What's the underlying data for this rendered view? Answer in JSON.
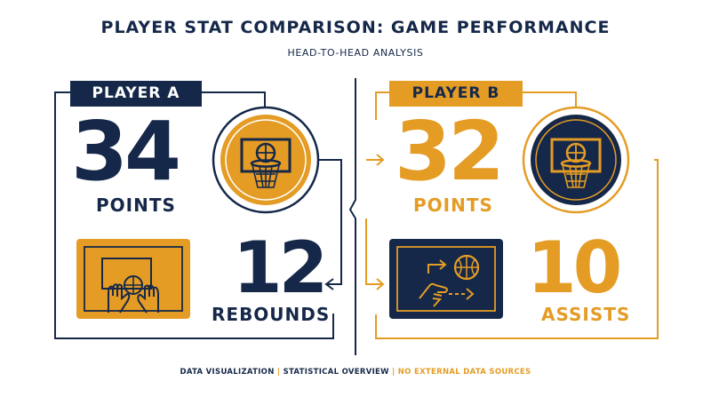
{
  "header": {
    "title": "PLAYER STAT COMPARISON: GAME PERFORMANCE",
    "subtitle": "HEAD-TO-HEAD ANALYSIS"
  },
  "player_a": {
    "name": "PLAYER A",
    "points": {
      "value": "34",
      "label": "POINTS"
    },
    "rebounds": {
      "value": "12",
      "label": "REBOUNDS"
    }
  },
  "player_b": {
    "name": "PLAYER B",
    "points": {
      "value": "32",
      "label": "POINTS"
    },
    "assists": {
      "value": "10",
      "label": "ASSISTS"
    }
  },
  "footer": {
    "part1": "DATA VISUALIZATION",
    "sep1": " | ",
    "part2": "STATISTICAL OVERVIEW",
    "sep2": " | ",
    "part3": "NO EXTERNAL DATA SOURCES"
  },
  "colors": {
    "navy": "#152849",
    "gold": "#E49C25",
    "background": "#FFFFFF"
  },
  "icons": [
    "basketball-hoop-icon",
    "rebound-hands-icon",
    "assist-pass-icon"
  ]
}
